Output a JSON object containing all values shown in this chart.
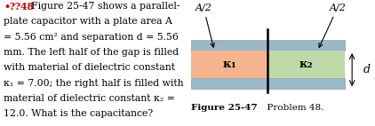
{
  "figure_caption_bold": "Figure 25-47",
  "figure_caption_normal": "  Problem 48.",
  "plate_color": "#9bb8c8",
  "dielectric1_color": "#f5b48e",
  "dielectric2_color": "#bdd9a8",
  "kappa1_label": "κ₁",
  "kappa2_label": "κ₂",
  "d_label": "d",
  "A2_left_label": "A/2",
  "A2_right_label": "A/2",
  "background_color": "#ffffff",
  "text_color": "#000000",
  "bullet_color": "#cc0000",
  "text_lines": [
    "plate capacitor with a plate area A",
    "= 5.56 cm² and separation d = 5.56",
    "mm. The left half of the gap is filled",
    "with material of dielectric constant",
    "κ₁ = 7.00; the right half is filled with",
    "material of dielectric constant κ₂ =",
    "12.0. What is the capacitance?"
  ]
}
